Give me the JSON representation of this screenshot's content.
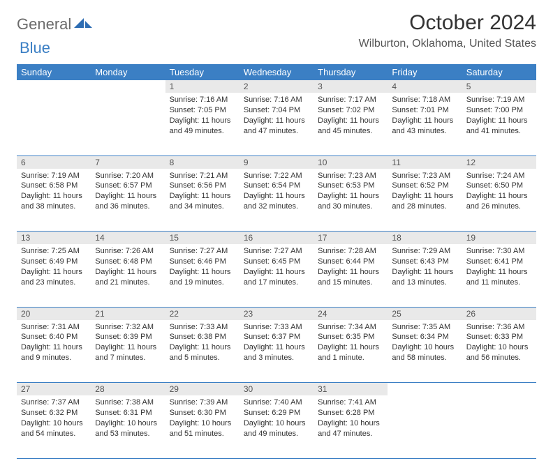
{
  "brand": {
    "part1": "General",
    "part2": "Blue"
  },
  "title": "October 2024",
  "location": "Wilburton, Oklahoma, United States",
  "day_headers": [
    "Sunday",
    "Monday",
    "Tuesday",
    "Wednesday",
    "Thursday",
    "Friday",
    "Saturday"
  ],
  "colors": {
    "header_bg": "#3b7fc4",
    "header_fg": "#ffffff",
    "daynum_bg": "#e9e9e9",
    "cell_border": "#3b7fc4",
    "brand_gray": "#6b6b6b",
    "brand_blue": "#3b7fc4"
  },
  "weeks": [
    [
      {
        "n": "",
        "sunrise": "",
        "sunset": "",
        "daylight": ""
      },
      {
        "n": "",
        "sunrise": "",
        "sunset": "",
        "daylight": ""
      },
      {
        "n": "1",
        "sunrise": "Sunrise: 7:16 AM",
        "sunset": "Sunset: 7:05 PM",
        "daylight": "Daylight: 11 hours and 49 minutes."
      },
      {
        "n": "2",
        "sunrise": "Sunrise: 7:16 AM",
        "sunset": "Sunset: 7:04 PM",
        "daylight": "Daylight: 11 hours and 47 minutes."
      },
      {
        "n": "3",
        "sunrise": "Sunrise: 7:17 AM",
        "sunset": "Sunset: 7:02 PM",
        "daylight": "Daylight: 11 hours and 45 minutes."
      },
      {
        "n": "4",
        "sunrise": "Sunrise: 7:18 AM",
        "sunset": "Sunset: 7:01 PM",
        "daylight": "Daylight: 11 hours and 43 minutes."
      },
      {
        "n": "5",
        "sunrise": "Sunrise: 7:19 AM",
        "sunset": "Sunset: 7:00 PM",
        "daylight": "Daylight: 11 hours and 41 minutes."
      }
    ],
    [
      {
        "n": "6",
        "sunrise": "Sunrise: 7:19 AM",
        "sunset": "Sunset: 6:58 PM",
        "daylight": "Daylight: 11 hours and 38 minutes."
      },
      {
        "n": "7",
        "sunrise": "Sunrise: 7:20 AM",
        "sunset": "Sunset: 6:57 PM",
        "daylight": "Daylight: 11 hours and 36 minutes."
      },
      {
        "n": "8",
        "sunrise": "Sunrise: 7:21 AM",
        "sunset": "Sunset: 6:56 PM",
        "daylight": "Daylight: 11 hours and 34 minutes."
      },
      {
        "n": "9",
        "sunrise": "Sunrise: 7:22 AM",
        "sunset": "Sunset: 6:54 PM",
        "daylight": "Daylight: 11 hours and 32 minutes."
      },
      {
        "n": "10",
        "sunrise": "Sunrise: 7:23 AM",
        "sunset": "Sunset: 6:53 PM",
        "daylight": "Daylight: 11 hours and 30 minutes."
      },
      {
        "n": "11",
        "sunrise": "Sunrise: 7:23 AM",
        "sunset": "Sunset: 6:52 PM",
        "daylight": "Daylight: 11 hours and 28 minutes."
      },
      {
        "n": "12",
        "sunrise": "Sunrise: 7:24 AM",
        "sunset": "Sunset: 6:50 PM",
        "daylight": "Daylight: 11 hours and 26 minutes."
      }
    ],
    [
      {
        "n": "13",
        "sunrise": "Sunrise: 7:25 AM",
        "sunset": "Sunset: 6:49 PM",
        "daylight": "Daylight: 11 hours and 23 minutes."
      },
      {
        "n": "14",
        "sunrise": "Sunrise: 7:26 AM",
        "sunset": "Sunset: 6:48 PM",
        "daylight": "Daylight: 11 hours and 21 minutes."
      },
      {
        "n": "15",
        "sunrise": "Sunrise: 7:27 AM",
        "sunset": "Sunset: 6:46 PM",
        "daylight": "Daylight: 11 hours and 19 minutes."
      },
      {
        "n": "16",
        "sunrise": "Sunrise: 7:27 AM",
        "sunset": "Sunset: 6:45 PM",
        "daylight": "Daylight: 11 hours and 17 minutes."
      },
      {
        "n": "17",
        "sunrise": "Sunrise: 7:28 AM",
        "sunset": "Sunset: 6:44 PM",
        "daylight": "Daylight: 11 hours and 15 minutes."
      },
      {
        "n": "18",
        "sunrise": "Sunrise: 7:29 AM",
        "sunset": "Sunset: 6:43 PM",
        "daylight": "Daylight: 11 hours and 13 minutes."
      },
      {
        "n": "19",
        "sunrise": "Sunrise: 7:30 AM",
        "sunset": "Sunset: 6:41 PM",
        "daylight": "Daylight: 11 hours and 11 minutes."
      }
    ],
    [
      {
        "n": "20",
        "sunrise": "Sunrise: 7:31 AM",
        "sunset": "Sunset: 6:40 PM",
        "daylight": "Daylight: 11 hours and 9 minutes."
      },
      {
        "n": "21",
        "sunrise": "Sunrise: 7:32 AM",
        "sunset": "Sunset: 6:39 PM",
        "daylight": "Daylight: 11 hours and 7 minutes."
      },
      {
        "n": "22",
        "sunrise": "Sunrise: 7:33 AM",
        "sunset": "Sunset: 6:38 PM",
        "daylight": "Daylight: 11 hours and 5 minutes."
      },
      {
        "n": "23",
        "sunrise": "Sunrise: 7:33 AM",
        "sunset": "Sunset: 6:37 PM",
        "daylight": "Daylight: 11 hours and 3 minutes."
      },
      {
        "n": "24",
        "sunrise": "Sunrise: 7:34 AM",
        "sunset": "Sunset: 6:35 PM",
        "daylight": "Daylight: 11 hours and 1 minute."
      },
      {
        "n": "25",
        "sunrise": "Sunrise: 7:35 AM",
        "sunset": "Sunset: 6:34 PM",
        "daylight": "Daylight: 10 hours and 58 minutes."
      },
      {
        "n": "26",
        "sunrise": "Sunrise: 7:36 AM",
        "sunset": "Sunset: 6:33 PM",
        "daylight": "Daylight: 10 hours and 56 minutes."
      }
    ],
    [
      {
        "n": "27",
        "sunrise": "Sunrise: 7:37 AM",
        "sunset": "Sunset: 6:32 PM",
        "daylight": "Daylight: 10 hours and 54 minutes."
      },
      {
        "n": "28",
        "sunrise": "Sunrise: 7:38 AM",
        "sunset": "Sunset: 6:31 PM",
        "daylight": "Daylight: 10 hours and 53 minutes."
      },
      {
        "n": "29",
        "sunrise": "Sunrise: 7:39 AM",
        "sunset": "Sunset: 6:30 PM",
        "daylight": "Daylight: 10 hours and 51 minutes."
      },
      {
        "n": "30",
        "sunrise": "Sunrise: 7:40 AM",
        "sunset": "Sunset: 6:29 PM",
        "daylight": "Daylight: 10 hours and 49 minutes."
      },
      {
        "n": "31",
        "sunrise": "Sunrise: 7:41 AM",
        "sunset": "Sunset: 6:28 PM",
        "daylight": "Daylight: 10 hours and 47 minutes."
      },
      {
        "n": "",
        "sunrise": "",
        "sunset": "",
        "daylight": ""
      },
      {
        "n": "",
        "sunrise": "",
        "sunset": "",
        "daylight": ""
      }
    ]
  ]
}
